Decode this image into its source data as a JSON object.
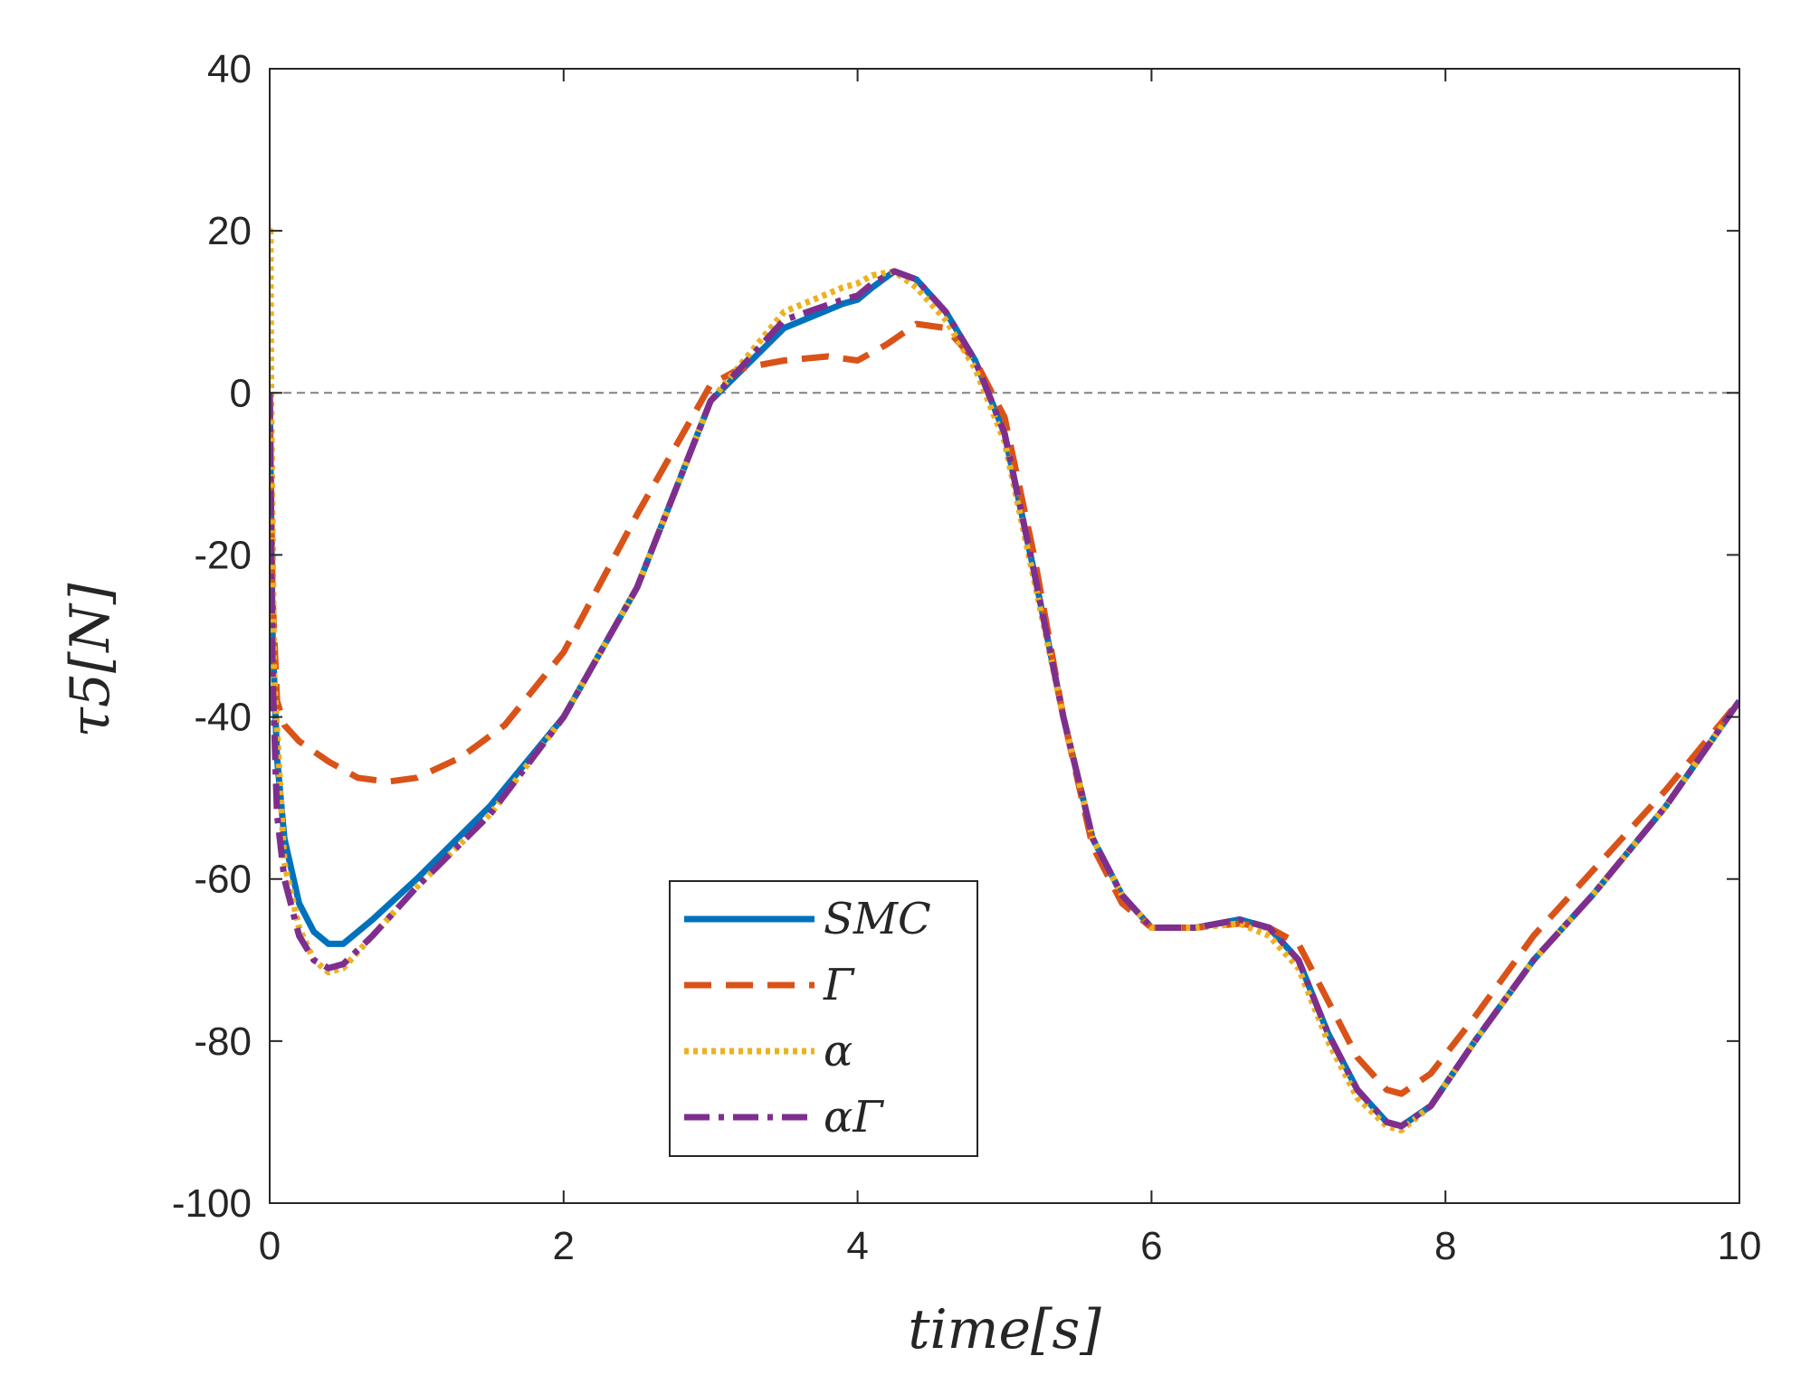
{
  "chart_data": {
    "type": "line",
    "title": "",
    "xlabel": "time[s]",
    "ylabel": "τ5[N]",
    "xlim": [
      0,
      10
    ],
    "ylim": [
      -100,
      40
    ],
    "xticks": [
      0,
      2,
      4,
      6,
      8,
      10
    ],
    "yticks": [
      40,
      20,
      0,
      -20,
      -40,
      -60,
      -80,
      -100
    ],
    "xtick_labels": [
      "0",
      "2",
      "4",
      "6",
      "8",
      "10"
    ],
    "ytick_labels": [
      "40",
      "20",
      "0",
      "-20",
      "-40",
      "-60",
      "-80",
      "-100"
    ],
    "grid": false,
    "reference_line": {
      "y": 0,
      "style": "dashed",
      "color": "#808080"
    },
    "legend_position": "lower-center",
    "series": [
      {
        "name": "SMC",
        "color": "#0072BD",
        "style": "solid",
        "x": [
          0,
          0.02,
          0.05,
          0.1,
          0.2,
          0.3,
          0.4,
          0.5,
          0.7,
          1.0,
          1.5,
          2.0,
          2.5,
          3.0,
          3.5,
          3.9,
          4.0,
          4.1,
          4.25,
          4.4,
          4.6,
          4.8,
          5.0,
          5.2,
          5.4,
          5.6,
          5.8,
          6.0,
          6.3,
          6.6,
          6.8,
          7.0,
          7.2,
          7.4,
          7.6,
          7.7,
          7.9,
          8.2,
          8.6,
          9.0,
          9.5,
          10.0
        ],
        "y": [
          0,
          -30,
          -45,
          -55,
          -63,
          -66.5,
          -68,
          -68,
          -65,
          -60,
          -51,
          -40,
          -24,
          -1,
          8,
          11,
          11.5,
          13,
          15,
          14,
          10,
          4,
          -5,
          -22,
          -40,
          -55,
          -62,
          -66,
          -66,
          -65,
          -66,
          -70,
          -79,
          -86,
          -90,
          -90.5,
          -88,
          -80,
          -70,
          -62,
          -51,
          -38
        ]
      },
      {
        "name": "Γ",
        "color": "#D95319",
        "style": "dashed",
        "x": [
          0,
          0.02,
          0.05,
          0.1,
          0.2,
          0.4,
          0.6,
          0.8,
          1.0,
          1.3,
          1.6,
          2.0,
          2.5,
          3.0,
          3.2,
          3.5,
          3.8,
          4.0,
          4.2,
          4.4,
          4.6,
          4.8,
          5.0,
          5.2,
          5.4,
          5.6,
          5.8,
          6.0,
          6.3,
          6.6,
          6.8,
          7.0,
          7.2,
          7.4,
          7.6,
          7.7,
          7.9,
          8.2,
          8.6,
          9.0,
          9.5,
          10.0
        ],
        "y": [
          0,
          -25,
          -38,
          -41,
          -43,
          -45.5,
          -47.5,
          -48,
          -47.5,
          -45,
          -41,
          -32,
          -15,
          1,
          3,
          4,
          4.5,
          4,
          6,
          8.5,
          8,
          4,
          -3,
          -20,
          -40,
          -56,
          -63,
          -66,
          -66,
          -65.5,
          -66,
          -68,
          -75,
          -82,
          -86,
          -86.5,
          -84,
          -77,
          -67,
          -59,
          -49,
          -38
        ]
      },
      {
        "name": "α",
        "color": "#EDB120",
        "style": "dotted",
        "x": [
          0,
          0.005,
          0.01,
          0.03,
          0.1,
          0.2,
          0.3,
          0.4,
          0.5,
          0.7,
          1.0,
          1.5,
          2.0,
          2.5,
          3.0,
          3.5,
          3.9,
          4.0,
          4.1,
          4.25,
          4.4,
          4.6,
          4.8,
          5.0,
          5.2,
          5.4,
          5.6,
          5.8,
          6.0,
          6.3,
          6.6,
          6.8,
          7.0,
          7.2,
          7.4,
          7.6,
          7.7,
          7.9,
          8.2,
          8.6,
          9.0,
          9.5,
          10.0
        ],
        "y": [
          20,
          20,
          0,
          -35,
          -58,
          -66,
          -70,
          -71.5,
          -71,
          -67,
          -61,
          -52,
          -40,
          -24,
          -1,
          10,
          13,
          13.5,
          14.5,
          15,
          13,
          9,
          3,
          -6,
          -23,
          -40,
          -55,
          -62,
          -66,
          -66,
          -65.5,
          -67,
          -71,
          -80,
          -87,
          -90.5,
          -91,
          -88,
          -80,
          -70,
          -62,
          -51,
          -38
        ]
      },
      {
        "name": "αΓ",
        "color": "#7E2F8E",
        "style": "dashdot",
        "x": [
          0,
          0.02,
          0.05,
          0.1,
          0.2,
          0.3,
          0.4,
          0.5,
          0.7,
          1.0,
          1.5,
          2.0,
          2.5,
          3.0,
          3.5,
          3.9,
          4.0,
          4.1,
          4.25,
          4.4,
          4.6,
          4.8,
          5.0,
          5.2,
          5.4,
          5.6,
          5.8,
          6.0,
          6.3,
          6.6,
          6.8,
          7.0,
          7.2,
          7.4,
          7.6,
          7.7,
          7.9,
          8.2,
          8.6,
          9.0,
          9.5,
          10.0
        ],
        "y": [
          0,
          -35,
          -52,
          -60,
          -67,
          -70,
          -71,
          -70.5,
          -67,
          -61,
          -52,
          -40,
          -24,
          -1,
          9,
          11.5,
          12,
          13.5,
          15,
          14,
          10,
          4,
          -5,
          -22,
          -40,
          -55,
          -62,
          -66,
          -66,
          -65,
          -66,
          -70,
          -79,
          -86,
          -90,
          -90.5,
          -88,
          -80,
          -70,
          -62,
          -51,
          -38
        ]
      }
    ]
  }
}
